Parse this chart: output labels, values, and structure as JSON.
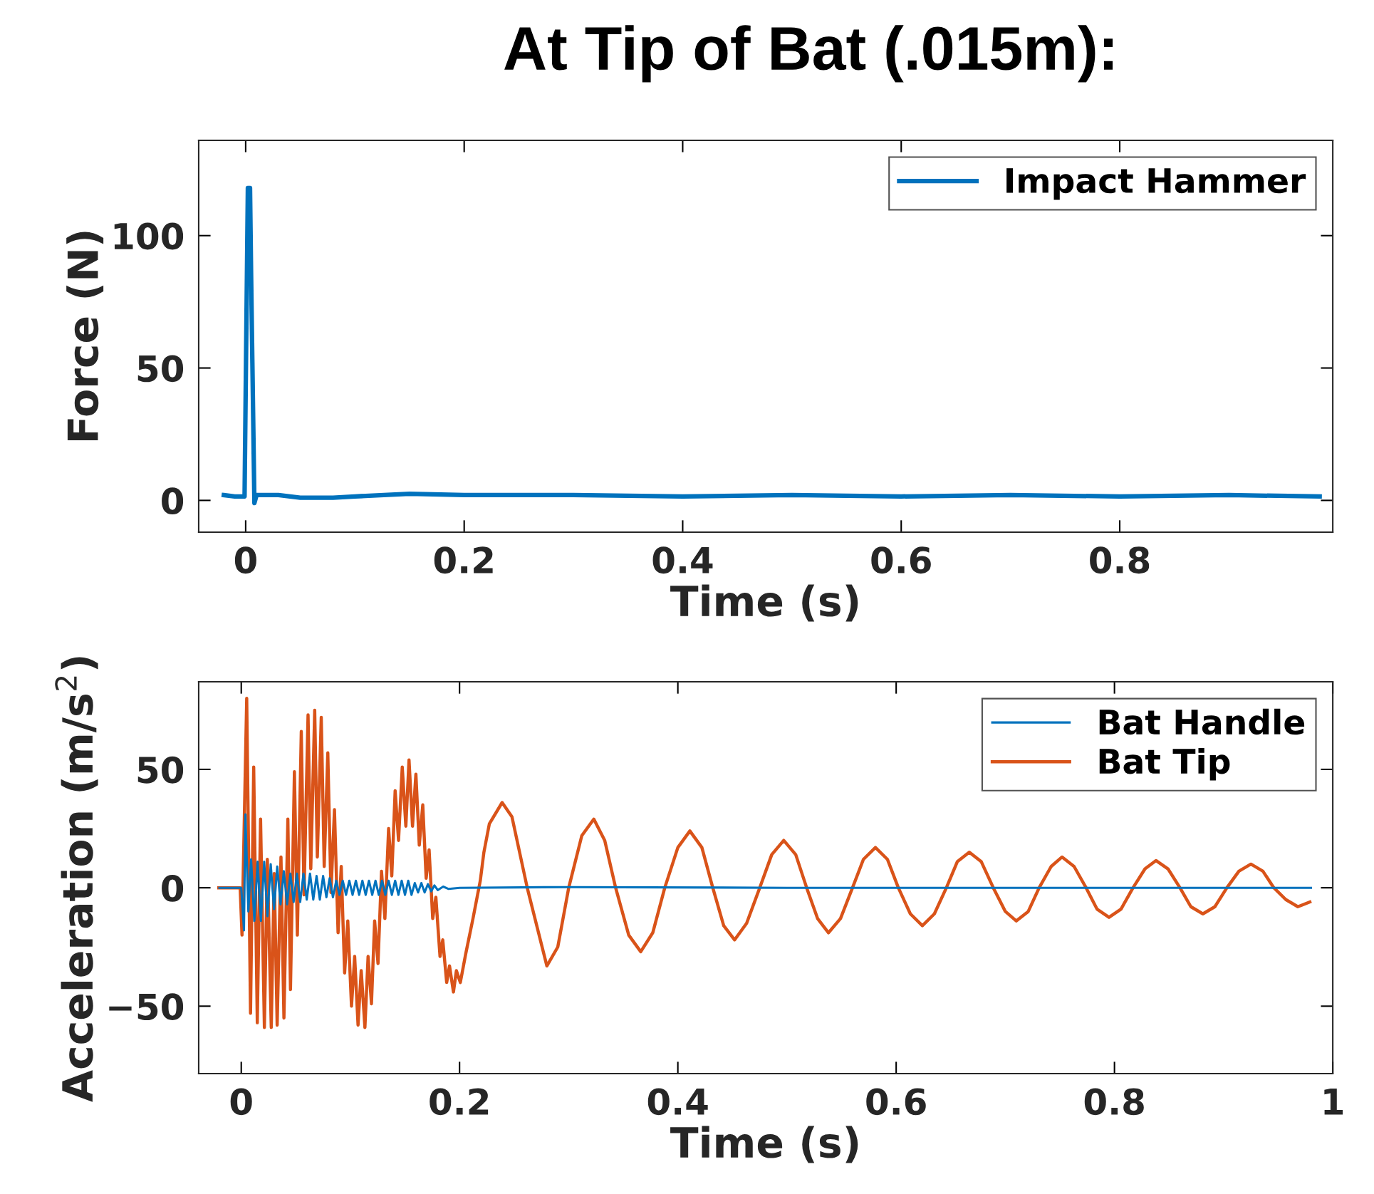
{
  "chart_data": [
    {
      "type": "line",
      "title": "At Tip of Bat (.015m):",
      "xlabel": "Time (s)",
      "ylabel": "Force (N)",
      "xlim": [
        -0.043,
        0.995
      ],
      "ylim": [
        -12,
        136
      ],
      "xticks": [
        0,
        0.2,
        0.4,
        0.6,
        0.8
      ],
      "yticks": [
        0,
        50,
        100
      ],
      "legend": "top right",
      "grid": false,
      "series": [
        {
          "name": "Impact Hammer",
          "color": "#0072bd",
          "x": [
            -0.02,
            -0.01,
            -0.001,
            0.002,
            0.004,
            0.005,
            0.008,
            0.01,
            0.03,
            0.05,
            0.08,
            0.1,
            0.15,
            0.2,
            0.3,
            0.4,
            0.5,
            0.6,
            0.7,
            0.8,
            0.9,
            0.983
          ],
          "values": [
            2,
            1.5,
            1.5,
            118,
            118,
            85,
            -1,
            2,
            2,
            1,
            1,
            1.5,
            2.5,
            2,
            2,
            1.5,
            2,
            1.5,
            2,
            1.5,
            2,
            1.5
          ]
        }
      ]
    },
    {
      "type": "line",
      "xlabel": "Time (s)",
      "ylabel": "Acceleration (m/s$^{2}$)",
      "xlim": [
        -0.039,
        1.0
      ],
      "ylim": [
        -78.5,
        87
      ],
      "xticks": [
        0,
        0.2,
        0.4,
        0.6,
        0.8,
        1
      ],
      "yticks": [
        {
          "value": -50,
          "label": "−50"
        },
        0,
        50
      ],
      "legend": "top right",
      "grid": false,
      "series": [
        {
          "name": "Bat Handle",
          "color": "#0072bd",
          "x": [
            -0.02,
            0,
            0.0025,
            0.0038,
            0.0065,
            0.009,
            0.012,
            0.015,
            0.018,
            0.021,
            0.024,
            0.027,
            0.03,
            0.033,
            0.036,
            0.039,
            0.042,
            0.045,
            0.048,
            0.051,
            0.054,
            0.057,
            0.06,
            0.063,
            0.066,
            0.069,
            0.072,
            0.075,
            0.078,
            0.081,
            0.084,
            0.087,
            0.09,
            0.093,
            0.096,
            0.099,
            0.102,
            0.105,
            0.108,
            0.111,
            0.114,
            0.117,
            0.12,
            0.123,
            0.126,
            0.129,
            0.132,
            0.135,
            0.138,
            0.141,
            0.144,
            0.147,
            0.15,
            0.153,
            0.156,
            0.159,
            0.162,
            0.165,
            0.168,
            0.171,
            0.174,
            0.177,
            0.18,
            0.185,
            0.19,
            0.2,
            0.3,
            0.5,
            0.7,
            0.98
          ],
          "values": [
            0,
            0,
            -18,
            31,
            -10,
            12,
            -14,
            11,
            -14,
            11,
            -12,
            10,
            -9,
            9,
            -7,
            7,
            -7,
            6,
            -6,
            6,
            -6,
            6,
            -5,
            6,
            -5,
            5,
            -5,
            5,
            -4,
            4,
            -4,
            3,
            -3,
            3,
            -3,
            3,
            -3,
            3,
            -3,
            3,
            -3,
            3,
            -3,
            3,
            -3,
            3,
            -3,
            3,
            -3,
            3,
            -3,
            3,
            -3,
            3,
            -3,
            2,
            -2,
            2,
            -2,
            1.5,
            -1.5,
            1,
            -1,
            0.5,
            -0.5,
            0,
            0.3,
            0,
            0,
            0
          ]
        },
        {
          "name": "Bat Tip",
          "color": "#d95319",
          "x": [
            -0.0206,
            -0.001,
            0.0007,
            0.005,
            0.0085,
            0.0114,
            0.0147,
            0.0177,
            0.0212,
            0.0239,
            0.0275,
            0.0302,
            0.0329,
            0.0364,
            0.0391,
            0.0427,
            0.0451,
            0.0487,
            0.0514,
            0.055,
            0.0575,
            0.0612,
            0.0637,
            0.0673,
            0.0697,
            0.0733,
            0.076,
            0.0793,
            0.0822,
            0.0854,
            0.0887,
            0.0916,
            0.0947,
            0.0976,
            0.101,
            0.1039,
            0.107,
            0.1099,
            0.1133,
            0.1162,
            0.1193,
            0.1222,
            0.1253,
            0.1285,
            0.1316,
            0.135,
            0.1379,
            0.141,
            0.1441,
            0.1475,
            0.1508,
            0.1537,
            0.1569,
            0.16,
            0.1631,
            0.1663,
            0.1694,
            0.1721,
            0.1754,
            0.1783,
            0.1821,
            0.1846,
            0.1882,
            0.1908,
            0.1944,
            0.1971,
            0.2007,
            0.2056,
            0.2123,
            0.219,
            0.2223,
            0.2273,
            0.239,
            0.248,
            0.262,
            0.28,
            0.29,
            0.3,
            0.312,
            0.323,
            0.333,
            0.343,
            0.355,
            0.366,
            0.377,
            0.388,
            0.4,
            0.411,
            0.422,
            0.432,
            0.442,
            0.452,
            0.463,
            0.475,
            0.486,
            0.497,
            0.508,
            0.518,
            0.528,
            0.538,
            0.549,
            0.56,
            0.57,
            0.581,
            0.592,
            0.602,
            0.613,
            0.624,
            0.635,
            0.646,
            0.656,
            0.667,
            0.678,
            0.689,
            0.7,
            0.71,
            0.721,
            0.731,
            0.742,
            0.752,
            0.763,
            0.774,
            0.784,
            0.795,
            0.806,
            0.817,
            0.828,
            0.838,
            0.849,
            0.86,
            0.87,
            0.881,
            0.892,
            0.903,
            0.914,
            0.925,
            0.936,
            0.946,
            0.957,
            0.968,
            0.979
          ],
          "values": [
            0,
            0,
            -20,
            80,
            -53,
            51,
            -57,
            29,
            -59,
            12,
            -59,
            6,
            -58,
            13,
            -55,
            29,
            -43,
            49,
            -20,
            66,
            -3,
            73,
            8,
            75,
            13,
            72,
            9,
            57,
            -2,
            33,
            -19,
            9,
            -36,
            -14,
            -50,
            -29,
            -58,
            -35,
            -59,
            -29,
            -49,
            -14,
            -32,
            7,
            -13,
            25,
            5,
            41,
            20,
            51,
            26,
            54,
            26,
            48,
            18,
            35,
            4,
            16,
            -13,
            -4,
            -29,
            -22,
            -40,
            -33,
            -44,
            -35,
            -40,
            -28,
            -13,
            3,
            15,
            27,
            36,
            30,
            0,
            -33,
            -25,
            0,
            22,
            29,
            20,
            0,
            -20,
            -27,
            -19,
            0,
            17,
            24,
            17,
            0,
            -16,
            -22,
            -15,
            0,
            14,
            20,
            14,
            0,
            -13,
            -19,
            -13,
            0,
            12,
            17,
            12,
            0,
            -11,
            -16,
            -11,
            0,
            11,
            15,
            11,
            0,
            -10,
            -14,
            -10,
            0,
            9,
            13,
            9,
            0,
            -9,
            -12.5,
            -9,
            0,
            8,
            11.5,
            8,
            0,
            -8,
            -11,
            -8,
            0,
            7,
            10,
            7,
            0,
            -5,
            -8,
            -6
          ]
        }
      ]
    }
  ]
}
